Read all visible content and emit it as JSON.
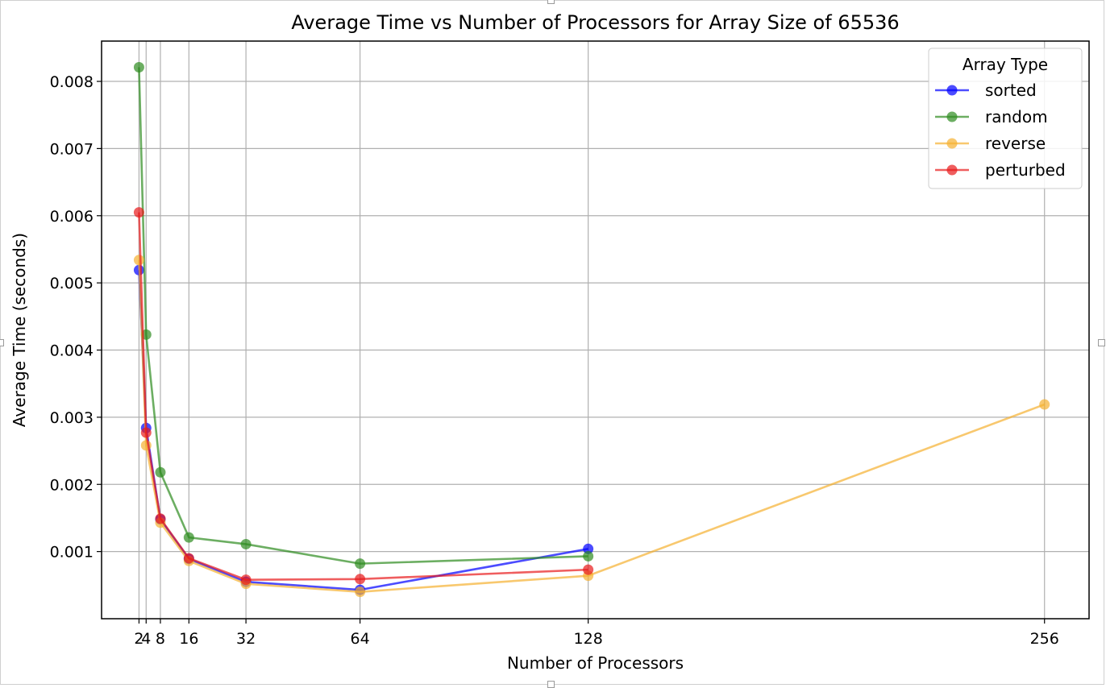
{
  "chart_data": {
    "type": "line",
    "title": "Average Time vs Number of Processors for Array Size of 65536",
    "xlabel": "Number of Processors",
    "ylabel": "Average Time (seconds)",
    "x_ticks": [
      2,
      4,
      8,
      16,
      32,
      64,
      128,
      256
    ],
    "x_tick_labels": [
      "2",
      "4",
      "8",
      "16",
      "32",
      "64",
      "128",
      "256"
    ],
    "y_ticks": [
      0.001,
      0.002,
      0.003,
      0.004,
      0.005,
      0.006,
      0.007,
      0.008
    ],
    "y_tick_labels": [
      "0.001",
      "0.002",
      "0.003",
      "0.004",
      "0.005",
      "0.006",
      "0.007",
      "0.008"
    ],
    "xlim": [
      -8.5,
      268.5
    ],
    "ylim": [
      0.0,
      0.0086
    ],
    "grid": true,
    "legend": {
      "title": "Array Type",
      "placement": "upper right"
    },
    "series": [
      {
        "name": "sorted",
        "color": "#0000ff",
        "points": [
          [
            2,
            0.00519
          ],
          [
            4,
            0.00284
          ],
          [
            8,
            0.00148
          ],
          [
            16,
            0.00089
          ],
          [
            32,
            0.00055
          ],
          [
            64,
            0.00043
          ],
          [
            128,
            0.00104
          ]
        ]
      },
      {
        "name": "random",
        "color": "#2e8b1f",
        "points": [
          [
            2,
            0.00821
          ],
          [
            4,
            0.00423
          ],
          [
            8,
            0.00218
          ],
          [
            16,
            0.00121
          ],
          [
            32,
            0.00111
          ],
          [
            64,
            0.00082
          ],
          [
            128,
            0.00093
          ]
        ]
      },
      {
        "name": "reverse",
        "color": "#f5b031",
        "points": [
          [
            2,
            0.00534
          ],
          [
            4,
            0.00258
          ],
          [
            8,
            0.00143
          ],
          [
            16,
            0.00086
          ],
          [
            32,
            0.00052
          ],
          [
            64,
            0.0004
          ],
          [
            128,
            0.00064
          ],
          [
            256,
            0.00319
          ]
        ]
      },
      {
        "name": "perturbed",
        "color": "#e8191b",
        "points": [
          [
            2,
            0.00605
          ],
          [
            4,
            0.00277
          ],
          [
            8,
            0.00149
          ],
          [
            16,
            0.0009
          ],
          [
            32,
            0.00058
          ],
          [
            64,
            0.00059
          ],
          [
            128,
            0.00073
          ]
        ]
      }
    ]
  }
}
